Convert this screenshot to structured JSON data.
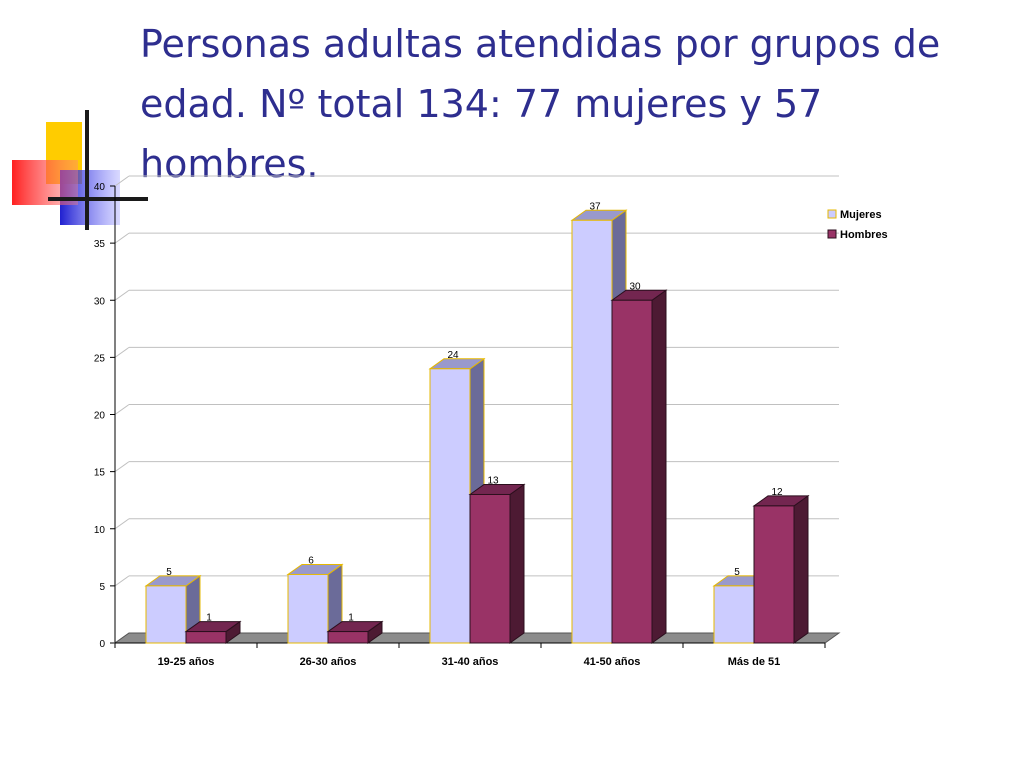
{
  "slide": {
    "title": "Personas adultas atendidas por grupos de edad. Nº total 134: 77 mujeres y 57 hombres."
  },
  "colors": {
    "title": "#2e2e8f",
    "mujeres_front": "#ccccff",
    "mujeres_side": "#6b6b99",
    "mujeres_top": "#9999cc",
    "mujeres_edge": "#e6b800",
    "hombres_front": "#993366",
    "hombres_side": "#4d1a33",
    "hombres_top": "#732650",
    "floor": "#8c8c8c",
    "grid": "#c0c0c0"
  },
  "chart_data": {
    "type": "bar",
    "categories": [
      "19-25 años",
      "26-30 años",
      "31-40 años",
      "41-50 años",
      "Más de 51"
    ],
    "series": [
      {
        "name": "Mujeres",
        "values": [
          5,
          6,
          24,
          37,
          5
        ]
      },
      {
        "name": "Hombres",
        "values": [
          1,
          1,
          13,
          30,
          12
        ]
      }
    ],
    "ylim": [
      0,
      40
    ],
    "yticks": [
      0,
      5,
      10,
      15,
      20,
      25,
      30,
      35,
      40
    ],
    "grid": true,
    "legend": "top-right",
    "three_d": true
  }
}
